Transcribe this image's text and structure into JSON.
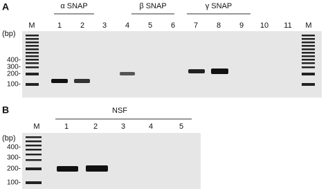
{
  "panel_a": {
    "label": "A",
    "groups": [
      "α SNAP",
      "β SNAP",
      "γ SNAP"
    ],
    "lanes": [
      "M",
      "1",
      "2",
      "3",
      "4",
      "5",
      "6",
      "7",
      "8",
      "9",
      "10",
      "11",
      "M"
    ],
    "size_unit": "(bp)",
    "size_markers": [
      "400-",
      "300-",
      "200-",
      "100-"
    ]
  },
  "panel_b": {
    "label": "B",
    "group": "NSF",
    "lanes": [
      "M",
      "1",
      "2",
      "3",
      "4",
      "5"
    ],
    "size_unit": "(bp)",
    "size_markers": [
      "400-",
      "300-",
      "200-",
      "100-"
    ]
  }
}
